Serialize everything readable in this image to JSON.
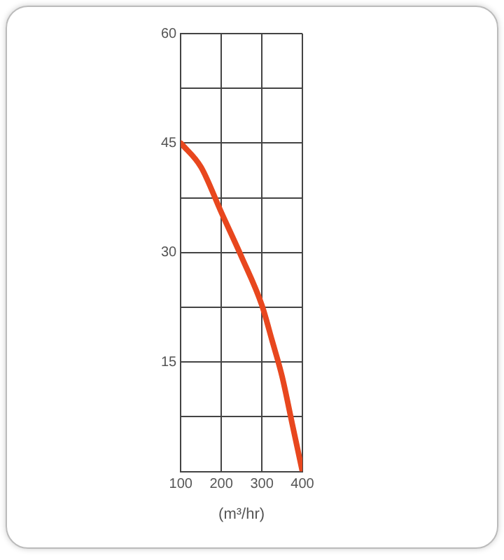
{
  "chart_data": {
    "type": "line",
    "xlabel": "(m³/hr)",
    "x": [
      100,
      150,
      200,
      250,
      300,
      325,
      350,
      375,
      400
    ],
    "series": [
      {
        "color": "#e8471e",
        "values": [
          45,
          41.7,
          35.5,
          29.4,
          22.8,
          18,
          13,
          6.5,
          0
        ]
      }
    ],
    "xlim": [
      100,
      400
    ],
    "xticks": [
      100,
      200,
      300,
      400
    ],
    "ylim": [
      0,
      60
    ],
    "yticks": [
      {
        "value": 0,
        "label": null
      },
      {
        "value": 7.5,
        "label": null
      },
      15,
      {
        "value": 22.5,
        "label": null
      },
      30,
      {
        "value": 37.5,
        "label": null
      },
      45,
      {
        "value": 52.5,
        "label": null
      },
      60
    ],
    "grid": true,
    "legend": false,
    "marker": "none",
    "line_style": "solid"
  }
}
